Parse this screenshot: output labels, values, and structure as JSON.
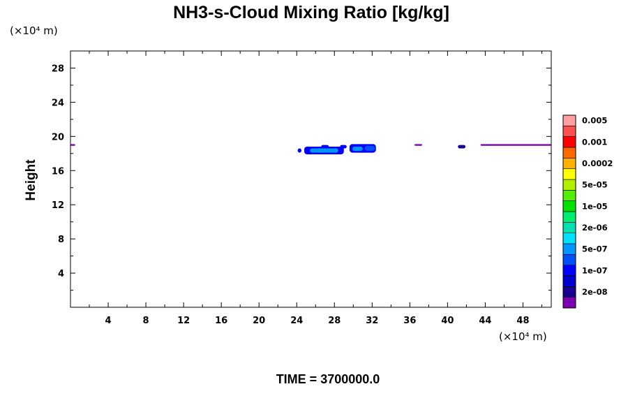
{
  "chart_data": {
    "type": "contour",
    "title": "NH3-s-Cloud Mixing Ratio [kg/kg]",
    "ylabel": "Height",
    "x_unit_label": "(×10⁴ m)",
    "y_unit_label": "(×10⁴ m)",
    "xlim": [
      0,
      51
    ],
    "ylim": [
      0,
      30
    ],
    "x_ticks": [
      4,
      8,
      12,
      16,
      20,
      24,
      28,
      32,
      36,
      40,
      44,
      48
    ],
    "y_ticks": [
      4,
      8,
      12,
      16,
      20,
      24,
      28
    ],
    "time_label": "TIME = 3700000.0",
    "colorbar": {
      "colors": [
        "#7a00b0",
        "#1a0090",
        "#0000d0",
        "#0000ff",
        "#0050ff",
        "#0095ff",
        "#00e0ff",
        "#00e0b0",
        "#00ee70",
        "#00e000",
        "#50ee00",
        "#b0f000",
        "#ffff00",
        "#ffb000",
        "#ff6a00",
        "#ff0000",
        "#ff5050",
        "#ffa0a0"
      ],
      "labels": [
        "2e-08",
        "1e-07",
        "5e-07",
        "2e-06",
        "1e-05",
        "5e-05",
        "0.0002",
        "0.001",
        "0.005"
      ]
    },
    "regions": [
      {
        "x0": 0.0,
        "x1": 0.5,
        "y0": 18.9,
        "y1": 19.1,
        "color": "#7a00b0"
      },
      {
        "x0": 24.1,
        "x1": 24.5,
        "y0": 18.1,
        "y1": 18.6,
        "color": "#0000ff"
      },
      {
        "x0": 24.8,
        "x1": 29.0,
        "y0": 17.9,
        "y1": 18.8,
        "color": "#0000ff"
      },
      {
        "x0": 25.4,
        "x1": 28.4,
        "y0": 18.1,
        "y1": 18.6,
        "color": "#0095ff"
      },
      {
        "x0": 26.6,
        "x1": 27.4,
        "y0": 18.6,
        "y1": 19.0,
        "color": "#0000ff"
      },
      {
        "x0": 28.6,
        "x1": 29.3,
        "y0": 18.6,
        "y1": 19.0,
        "color": "#0000ff"
      },
      {
        "x0": 29.6,
        "x1": 32.4,
        "y0": 18.1,
        "y1": 19.1,
        "color": "#0000ff"
      },
      {
        "x0": 29.9,
        "x1": 31.0,
        "y0": 18.3,
        "y1": 18.8,
        "color": "#0095ff"
      },
      {
        "x0": 31.2,
        "x1": 32.3,
        "y0": 18.3,
        "y1": 18.9,
        "color": "#0050ff"
      },
      {
        "x0": 36.5,
        "x1": 37.3,
        "y0": 18.9,
        "y1": 19.1,
        "color": "#7a00b0"
      },
      {
        "x0": 41.1,
        "x1": 41.9,
        "y0": 18.6,
        "y1": 19.0,
        "color": "#1a0090"
      },
      {
        "x0": 43.5,
        "x1": 51.0,
        "y0": 18.9,
        "y1": 19.1,
        "color": "#7a00b0"
      }
    ]
  }
}
